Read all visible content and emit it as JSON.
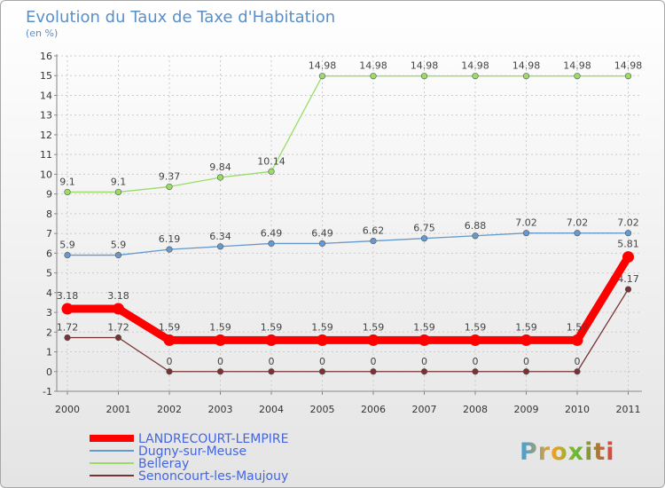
{
  "chart_data": {
    "type": "line",
    "title": "Evolution du Taux de Taxe d'Habitation",
    "subtitle": "(en %)",
    "categories": [
      "2000",
      "2001",
      "2002",
      "2003",
      "2004",
      "2005",
      "2006",
      "2007",
      "2008",
      "2009",
      "2010",
      "2011"
    ],
    "ylim": [
      -1,
      16
    ],
    "yticks": [
      -1,
      0,
      1,
      2,
      3,
      4,
      5,
      6,
      7,
      8,
      9,
      10,
      11,
      12,
      13,
      14,
      15,
      16
    ],
    "grid": true,
    "legend_position": "bottom-left",
    "series": [
      {
        "name": "LANDRECOURT-LEMPIRE",
        "color": "#ff0000",
        "values": [
          3.18,
          3.18,
          1.59,
          1.59,
          1.59,
          1.59,
          1.59,
          1.59,
          1.59,
          1.59,
          1.59,
          5.81
        ],
        "labels": [
          "3.18",
          "3.18",
          "1.59",
          "1.59",
          "1.59",
          "1.59",
          "1.59",
          "1.59",
          "1.59",
          "1.59",
          "1.59",
          "5.81"
        ]
      },
      {
        "name": "Dugny-sur-Meuse",
        "color": "#6699cc",
        "values": [
          5.9,
          5.9,
          6.19,
          6.34,
          6.49,
          6.49,
          6.62,
          6.75,
          6.88,
          7.02,
          7.02,
          7.02
        ],
        "labels": [
          "5.9",
          "5.9",
          "6.19",
          "6.34",
          "6.49",
          "6.49",
          "6.62",
          "6.75",
          "6.88",
          "7.02",
          "7.02",
          "7.02"
        ]
      },
      {
        "name": "Belleray",
        "color": "#99dd66",
        "values": [
          9.1,
          9.1,
          9.37,
          9.84,
          10.14,
          14.98,
          14.98,
          14.98,
          14.98,
          14.98,
          14.98,
          14.98
        ],
        "labels": [
          "9.1",
          "9.1",
          "9.37",
          "9.84",
          "10.14",
          "14.98",
          "14.98",
          "14.98",
          "14.98",
          "14.98",
          "14.98",
          "14.98"
        ]
      },
      {
        "name": "Senoncourt-les-Maujouy",
        "color": "#773333",
        "values": [
          1.72,
          1.72,
          0,
          0,
          0,
          0,
          0,
          0,
          0,
          0,
          0,
          4.17
        ],
        "labels": [
          "1.72",
          "1.72",
          "0",
          "0",
          "0",
          "0",
          "0",
          "0",
          "0",
          "0",
          "0",
          "4.17"
        ]
      }
    ]
  },
  "logo": {
    "text": "Proxiti"
  }
}
